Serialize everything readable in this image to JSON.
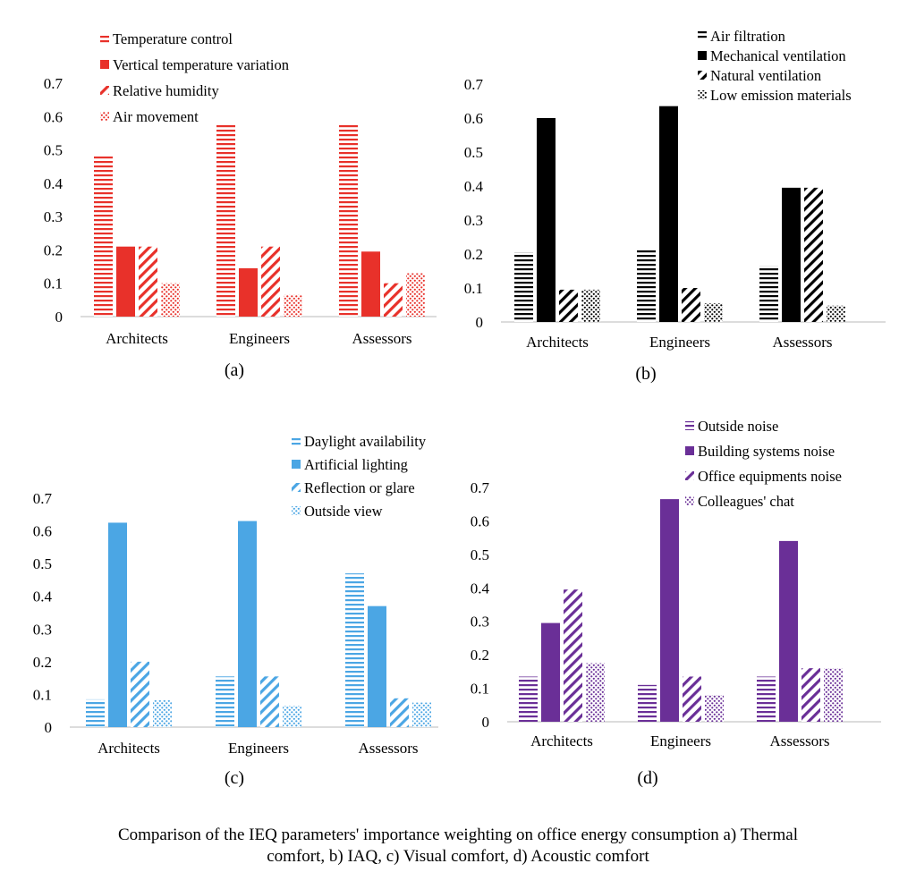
{
  "chart_data": [
    {
      "type": "bar",
      "panel_label": "(a)",
      "categories": [
        "Architects",
        "Engineers",
        "Assessors"
      ],
      "ylim": [
        0,
        0.7
      ],
      "yticks": [
        "0",
        "0.1",
        "0.2",
        "0.3",
        "0.4",
        "0.5",
        "0.6",
        "0.7"
      ],
      "legend_position": "top-left",
      "color": "#e8312a",
      "series": [
        {
          "name": "Temperature control",
          "pattern": "hlines",
          "values": [
            0.48,
            0.58,
            0.575
          ]
        },
        {
          "name": "Vertical temperature variation",
          "pattern": "solid",
          "values": [
            0.21,
            0.145,
            0.195
          ]
        },
        {
          "name": "Relative humidity",
          "pattern": "diag",
          "values": [
            0.21,
            0.21,
            0.1
          ]
        },
        {
          "name": "Air movement",
          "pattern": "dots",
          "values": [
            0.1,
            0.065,
            0.13
          ]
        }
      ]
    },
    {
      "type": "bar",
      "panel_label": "(b)",
      "categories": [
        "Architects",
        "Engineers",
        "Assessors"
      ],
      "ylim": [
        0,
        0.7
      ],
      "yticks": [
        "0",
        "0.1",
        "0.2",
        "0.3",
        "0.4",
        "0.5",
        "0.6",
        "0.7"
      ],
      "legend_position": "top-right",
      "color": "#000000",
      "series": [
        {
          "name": "Air filtration",
          "pattern": "hlines",
          "values": [
            0.205,
            0.215,
            0.165
          ]
        },
        {
          "name": "Mechanical ventilation",
          "pattern": "solid",
          "values": [
            0.6,
            0.635,
            0.395
          ]
        },
        {
          "name": "Natural ventilation",
          "pattern": "diag",
          "values": [
            0.095,
            0.1,
            0.395
          ]
        },
        {
          "name": "Low emission materials",
          "pattern": "dots",
          "values": [
            0.095,
            0.055,
            0.048
          ]
        }
      ]
    },
    {
      "type": "bar",
      "panel_label": "(c)",
      "categories": [
        "Architects",
        "Engineers",
        "Assessors"
      ],
      "ylim": [
        0,
        0.7
      ],
      "yticks": [
        "0",
        "0.1",
        "0.2",
        "0.3",
        "0.4",
        "0.5",
        "0.6",
        "0.7"
      ],
      "legend_position": "top-right",
      "color": "#4ba6e4",
      "series": [
        {
          "name": "Daylight availability",
          "pattern": "hlines",
          "values": [
            0.085,
            0.155,
            0.47
          ]
        },
        {
          "name": "Artificial lighting",
          "pattern": "solid",
          "values": [
            0.625,
            0.63,
            0.37
          ]
        },
        {
          "name": "Reflection or glare",
          "pattern": "diag",
          "values": [
            0.2,
            0.155,
            0.088
          ]
        },
        {
          "name": "Outside view",
          "pattern": "dots",
          "values": [
            0.082,
            0.065,
            0.075
          ]
        }
      ]
    },
    {
      "type": "bar",
      "panel_label": "(d)",
      "categories": [
        "Architects",
        "Engineers",
        "Assessors"
      ],
      "ylim": [
        0,
        0.7
      ],
      "yticks": [
        "0",
        "0.1",
        "0.2",
        "0.3",
        "0.4",
        "0.5",
        "0.6",
        "0.7"
      ],
      "legend_position": "top-right",
      "color": "#6a2f97",
      "series": [
        {
          "name": "Outside noise",
          "pattern": "hlines",
          "values": [
            0.135,
            0.11,
            0.135
          ]
        },
        {
          "name": "Building systems noise",
          "pattern": "solid",
          "values": [
            0.295,
            0.665,
            0.54
          ]
        },
        {
          "name": "Office equipments noise",
          "pattern": "diag",
          "values": [
            0.395,
            0.135,
            0.16
          ]
        },
        {
          "name": "Colleagues' chat",
          "pattern": "dots",
          "values": [
            0.175,
            0.08,
            0.16
          ]
        }
      ]
    }
  ],
  "caption": {
    "line1": "Comparison of the IEQ parameters' importance weighting on office energy consumption a) Thermal",
    "line2": "comfort, b) IAQ, c) Visual comfort, d) Acoustic comfort"
  }
}
